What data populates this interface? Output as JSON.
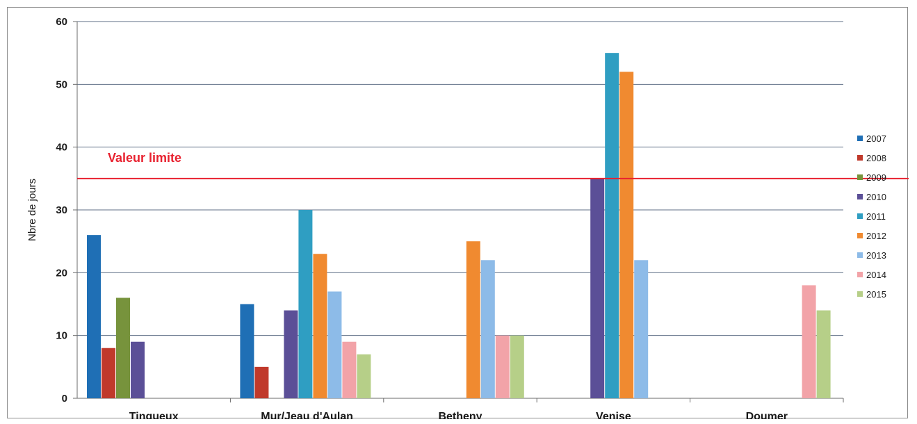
{
  "chart_data": {
    "type": "bar",
    "title": "",
    "xlabel": "",
    "ylabel": "Nbre de jours",
    "ylim": [
      0,
      60
    ],
    "yticks": [
      0,
      10,
      20,
      30,
      40,
      50,
      60
    ],
    "grid": true,
    "legend_position": "right",
    "categories": [
      "Tinqueux",
      "Mur/Jeau d'Aulan",
      "Betheny",
      "Venise",
      "Doumer"
    ],
    "series": [
      {
        "name": "2007",
        "color": "#1f6fb5",
        "values": [
          26,
          15,
          null,
          null,
          null
        ]
      },
      {
        "name": "2008",
        "color": "#c0392b",
        "values": [
          8,
          5,
          null,
          null,
          null
        ]
      },
      {
        "name": "2009",
        "color": "#77933c",
        "values": [
          16,
          null,
          null,
          null,
          null
        ]
      },
      {
        "name": "2010",
        "color": "#5b4f97",
        "values": [
          9,
          14,
          null,
          35,
          null
        ]
      },
      {
        "name": "2011",
        "color": "#2f9ec2",
        "values": [
          null,
          30,
          null,
          55,
          null
        ]
      },
      {
        "name": "2012",
        "color": "#f08a30",
        "values": [
          null,
          23,
          25,
          52,
          null
        ]
      },
      {
        "name": "2013",
        "color": "#8dbbe8",
        "values": [
          null,
          17,
          22,
          22,
          null
        ]
      },
      {
        "name": "2014",
        "color": "#f2a3a8",
        "values": [
          null,
          9,
          10,
          null,
          18
        ]
      },
      {
        "name": "2015",
        "color": "#b6cf88",
        "values": [
          null,
          7,
          10,
          null,
          14
        ]
      }
    ],
    "threshold": {
      "label": "Valeur limite",
      "value": 35,
      "color": "#e8212f"
    }
  }
}
